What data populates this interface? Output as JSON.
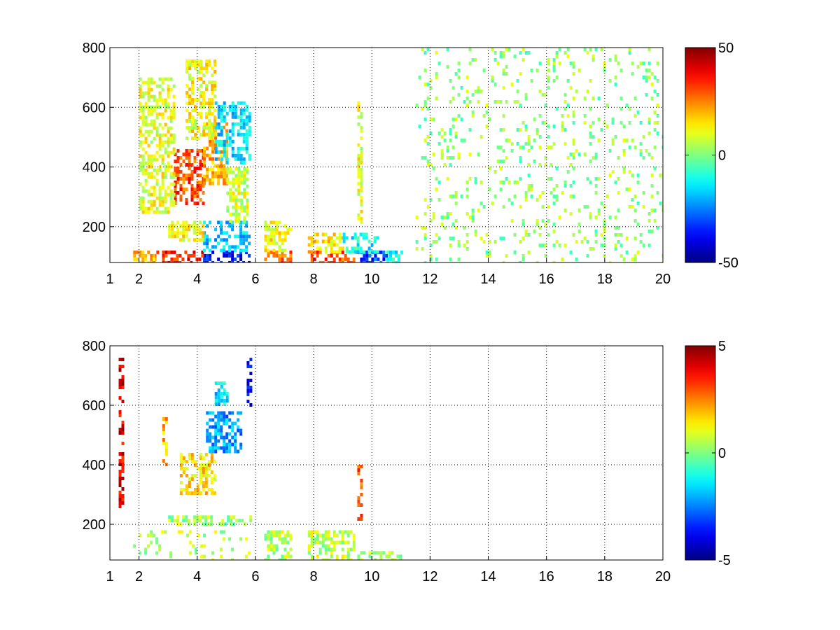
{
  "chart_data": [
    {
      "type": "heatmap",
      "title": "",
      "xlabel": "",
      "ylabel": "",
      "xlim": [
        1,
        20
      ],
      "ylim": [
        80,
        800
      ],
      "grid": true,
      "x_ticks": [
        {
          "value": 1,
          "label": "1"
        },
        {
          "value": 2,
          "label": "2"
        },
        {
          "value": 4,
          "label": "4"
        },
        {
          "value": 6,
          "label": "6"
        },
        {
          "value": 8,
          "label": "8"
        },
        {
          "value": 10,
          "label": "10"
        },
        {
          "value": 12,
          "label": "12"
        },
        {
          "value": 14,
          "label": "14"
        },
        {
          "value": 16,
          "label": "16"
        },
        {
          "value": 18,
          "label": "18"
        },
        {
          "value": 20,
          "label": "20"
        }
      ],
      "y_ticks": [
        {
          "value": 200,
          "label": "200"
        },
        {
          "value": 400,
          "label": "400"
        },
        {
          "value": 600,
          "label": "600"
        },
        {
          "value": 800,
          "label": "800"
        }
      ],
      "colormap": "jet",
      "clim": [
        -50,
        50
      ],
      "colorbar_ticks": [
        {
          "value": 50,
          "label": "50"
        },
        {
          "value": 0,
          "label": "0"
        },
        {
          "value": -50,
          "label": "-50"
        }
      ],
      "cells": [
        {
          "x": [
            4.2,
            5.8
          ],
          "y": [
            80,
            120
          ],
          "value": -38
        },
        {
          "x": [
            2.5,
            4.2
          ],
          "y": [
            80,
            120
          ],
          "value": 35
        },
        {
          "x": [
            1.8,
            2.5
          ],
          "y": [
            80,
            120
          ],
          "value": 20
        },
        {
          "x": [
            6.3,
            7.2
          ],
          "y": [
            80,
            120
          ],
          "value": 28
        },
        {
          "x": [
            7.8,
            9.5
          ],
          "y": [
            80,
            120
          ],
          "value": 30
        },
        {
          "x": [
            9.5,
            10.5
          ],
          "y": [
            80,
            120
          ],
          "value": -30
        },
        {
          "x": [
            10.5,
            11.0
          ],
          "y": [
            80,
            120
          ],
          "value": -12
        },
        {
          "x": [
            4.2,
            5.8
          ],
          "y": [
            120,
            220
          ],
          "value": -18
        },
        {
          "x": [
            3.0,
            4.2
          ],
          "y": [
            150,
            220
          ],
          "value": 12
        },
        {
          "x": [
            6.3,
            7.2
          ],
          "y": [
            120,
            220
          ],
          "value": 12
        },
        {
          "x": [
            7.8,
            9.0
          ],
          "y": [
            120,
            180
          ],
          "value": 15
        },
        {
          "x": [
            9.0,
            10.2
          ],
          "y": [
            120,
            180
          ],
          "value": -12
        },
        {
          "x": [
            3.2,
            4.2
          ],
          "y": [
            280,
            460
          ],
          "value": 30
        },
        {
          "x": [
            4.2,
            5.0
          ],
          "y": [
            350,
            550
          ],
          "value": 20
        },
        {
          "x": [
            4.6,
            5.8
          ],
          "y": [
            420,
            620
          ],
          "value": -15
        },
        {
          "x": [
            2.0,
            3.2
          ],
          "y": [
            250,
            700
          ],
          "value": 10
        },
        {
          "x": [
            3.6,
            4.6
          ],
          "y": [
            500,
            760
          ],
          "value": 12
        },
        {
          "x": [
            5.0,
            5.7
          ],
          "y": [
            220,
            400
          ],
          "value": 8
        },
        {
          "x": [
            9.5,
            9.6
          ],
          "y": [
            220,
            620
          ],
          "value": 10
        },
        {
          "x": [
            11.5,
            20.0
          ],
          "y": [
            80,
            800
          ],
          "value": 2
        }
      ]
    },
    {
      "type": "heatmap",
      "title": "",
      "xlabel": "",
      "ylabel": "",
      "xlim": [
        1,
        20
      ],
      "ylim": [
        80,
        800
      ],
      "grid": true,
      "x_ticks": [
        {
          "value": 1,
          "label": "1"
        },
        {
          "value": 2,
          "label": "2"
        },
        {
          "value": 4,
          "label": "4"
        },
        {
          "value": 6,
          "label": "6"
        },
        {
          "value": 8,
          "label": "8"
        },
        {
          "value": 10,
          "label": "10"
        },
        {
          "value": 12,
          "label": "12"
        },
        {
          "value": 14,
          "label": "14"
        },
        {
          "value": 16,
          "label": "16"
        },
        {
          "value": 18,
          "label": "18"
        },
        {
          "value": 20,
          "label": "20"
        }
      ],
      "y_ticks": [
        {
          "value": 200,
          "label": "200"
        },
        {
          "value": 400,
          "label": "400"
        },
        {
          "value": 600,
          "label": "600"
        },
        {
          "value": 800,
          "label": "800"
        }
      ],
      "colormap": "jet",
      "clim": [
        -5,
        5
      ],
      "colorbar_ticks": [
        {
          "value": 5,
          "label": "5"
        },
        {
          "value": 0,
          "label": "0"
        },
        {
          "value": -5,
          "label": "-5"
        }
      ],
      "cells": [
        {
          "x": [
            1.7,
            5.8
          ],
          "y": [
            80,
            180
          ],
          "value": 0.5
        },
        {
          "x": [
            6.3,
            7.2
          ],
          "y": [
            80,
            180
          ],
          "value": 0.5
        },
        {
          "x": [
            7.8,
            9.4
          ],
          "y": [
            80,
            180
          ],
          "value": 0.6
        },
        {
          "x": [
            9.5,
            11.0
          ],
          "y": [
            80,
            110
          ],
          "value": 0.4
        },
        {
          "x": [
            3.0,
            5.8
          ],
          "y": [
            200,
            230
          ],
          "value": 0.3
        },
        {
          "x": [
            3.4,
            4.6
          ],
          "y": [
            300,
            440
          ],
          "value": 1.5
        },
        {
          "x": [
            4.3,
            5.5
          ],
          "y": [
            440,
            580
          ],
          "value": -2.2
        },
        {
          "x": [
            4.6,
            5.0
          ],
          "y": [
            600,
            680
          ],
          "value": -1.5
        },
        {
          "x": [
            5.7,
            5.8
          ],
          "y": [
            600,
            760
          ],
          "value": -4
        },
        {
          "x": [
            9.5,
            9.6
          ],
          "y": [
            220,
            400
          ],
          "value": 3
        },
        {
          "x": [
            1.3,
            1.4
          ],
          "y": [
            250,
            760
          ],
          "value": 4
        },
        {
          "x": [
            2.8,
            2.9
          ],
          "y": [
            400,
            560
          ],
          "value": 2
        }
      ]
    }
  ]
}
